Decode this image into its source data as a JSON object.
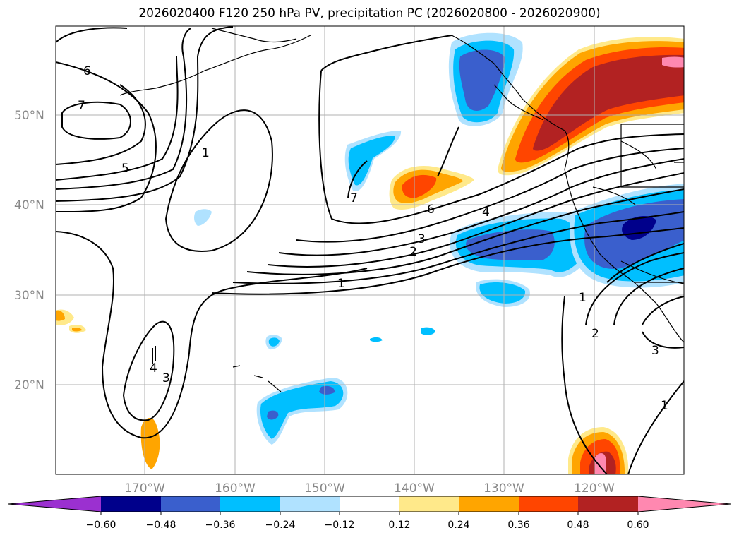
{
  "title": "2026020400 F120 250 hPa PV, precipitation PC (2026020800 - 2026020900)",
  "lat_labels": [
    "50°N",
    "40°N",
    "30°N",
    "20°N"
  ],
  "lon_labels": [
    "170°W",
    "160°W",
    "150°W",
    "140°W",
    "130°W",
    "120°W"
  ],
  "colorbar": {
    "ticks": [
      "−0.60",
      "−0.48",
      "−0.36",
      "−0.24",
      "−0.12",
      "0.12",
      "0.24",
      "0.36",
      "0.48",
      "0.60"
    ],
    "colors": [
      "#9b30d0",
      "#00008b",
      "#3a5fcd",
      "#00bfff",
      "#b0e2ff",
      "#ffffff",
      "#ffe98a",
      "#ffa500",
      "#ff4500",
      "#b22222",
      "#ff88b0"
    ]
  },
  "contour_labels": [
    "6",
    "7",
    "5",
    "1",
    "7",
    "6",
    "4",
    "3",
    "2",
    "1",
    "4",
    "3",
    "1",
    "2",
    "3",
    "1"
  ]
}
